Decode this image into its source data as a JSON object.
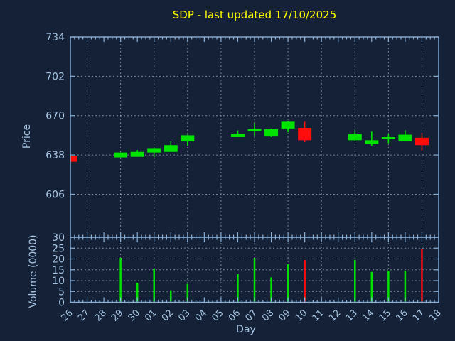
{
  "window": {
    "background_color": "#142136",
    "axis_line_color": "#8ab0d8",
    "text_color": "#a8c6e4",
    "grid_color": "#b4bcc8",
    "title_color": "#ffff00",
    "up_color": "#00e400",
    "down_color": "#ff0d0d"
  },
  "chart": {
    "title": "SDP - last updated 17/10/2025",
    "price_axis_label": "Price",
    "volume_axis_label": "Volume (0000)",
    "day_axis_label": "Day",
    "day_axis": {
      "gridline_days": [
        "27",
        "29",
        "01",
        "03",
        "05",
        "07",
        "09",
        "11",
        "13",
        "15",
        "17"
      ]
    }
  },
  "chart_data": [
    {
      "type": "candlestick",
      "title": "SDP - last updated 17/10/2025",
      "xlabel": "Day",
      "ylabel": "Price",
      "categories": [
        "26",
        "27",
        "28",
        "29",
        "30",
        "01",
        "02",
        "03",
        "04",
        "05",
        "06",
        "07",
        "08",
        "09",
        "10",
        "11",
        "12",
        "13",
        "14",
        "15",
        "16",
        "17",
        "18"
      ],
      "yticks": [
        606,
        638,
        670,
        702,
        734
      ],
      "ylim": [
        571,
        734
      ],
      "grid": true,
      "legend": "none",
      "candles": [
        {
          "day": "26",
          "open": 637.5,
          "high": 637.5,
          "low": 632.5,
          "close": 632.5,
          "direction": "down",
          "clipped_at_left_edge": true
        },
        {
          "day": "29",
          "open": 636,
          "high": 640,
          "low": 636,
          "close": 640,
          "direction": "up"
        },
        {
          "day": "30",
          "open": 636.5,
          "high": 642,
          "low": 636.5,
          "close": 640.5,
          "direction": "up"
        },
        {
          "day": "01",
          "open": 640,
          "high": 644,
          "low": 636,
          "close": 643,
          "direction": "up"
        },
        {
          "day": "02",
          "open": 640.5,
          "high": 649,
          "low": 640.5,
          "close": 646,
          "direction": "up"
        },
        {
          "day": "03",
          "open": 649,
          "high": 654.5,
          "low": 645.5,
          "close": 654,
          "direction": "up"
        },
        {
          "day": "06",
          "open": 652.5,
          "high": 658,
          "low": 652.5,
          "close": 655,
          "direction": "up"
        },
        {
          "day": "07",
          "open": 657.5,
          "high": 664,
          "low": 653,
          "close": 659,
          "direction": "up"
        },
        {
          "day": "08",
          "open": 653,
          "high": 659.5,
          "low": 652.5,
          "close": 659,
          "direction": "up"
        },
        {
          "day": "09",
          "open": 659.5,
          "high": 665.5,
          "low": 656.5,
          "close": 665,
          "direction": "up"
        },
        {
          "day": "10",
          "open": 660,
          "high": 665,
          "low": 648.5,
          "close": 650,
          "direction": "down"
        },
        {
          "day": "13",
          "open": 650,
          "high": 658,
          "low": 650,
          "close": 655,
          "direction": "up"
        },
        {
          "day": "14",
          "open": 647,
          "high": 657,
          "low": 645.5,
          "close": 650,
          "direction": "up"
        },
        {
          "day": "15",
          "open": 651,
          "high": 655,
          "low": 647.5,
          "close": 652.5,
          "direction": "up"
        },
        {
          "day": "16",
          "open": 649,
          "high": 658,
          "low": 649,
          "close": 654.5,
          "direction": "up"
        },
        {
          "day": "17",
          "open": 652,
          "high": 656,
          "low": 641.5,
          "close": 646,
          "direction": "down"
        }
      ]
    },
    {
      "type": "bar",
      "ylabel": "Volume (0000)",
      "xlabel": "Day",
      "categories": [
        "26",
        "27",
        "28",
        "29",
        "30",
        "01",
        "02",
        "03",
        "04",
        "05",
        "06",
        "07",
        "08",
        "09",
        "10",
        "11",
        "12",
        "13",
        "14",
        "15",
        "16",
        "17",
        "18"
      ],
      "yticks": [
        0,
        5,
        10,
        15,
        20,
        25,
        30
      ],
      "ylim": [
        0,
        30
      ],
      "grid": true,
      "bars": [
        {
          "day": "29",
          "value": 20.5,
          "direction": "up"
        },
        {
          "day": "30",
          "value": 9,
          "direction": "up"
        },
        {
          "day": "01",
          "value": 15.5,
          "direction": "up"
        },
        {
          "day": "02",
          "value": 5.5,
          "direction": "up"
        },
        {
          "day": "03",
          "value": 8.5,
          "direction": "up"
        },
        {
          "day": "06",
          "value": 13,
          "direction": "up"
        },
        {
          "day": "07",
          "value": 20.5,
          "direction": "up"
        },
        {
          "day": "08",
          "value": 11.5,
          "direction": "up"
        },
        {
          "day": "09",
          "value": 17.5,
          "direction": "up"
        },
        {
          "day": "10",
          "value": 19.5,
          "direction": "down"
        },
        {
          "day": "13",
          "value": 19.5,
          "direction": "up"
        },
        {
          "day": "14",
          "value": 14,
          "direction": "up"
        },
        {
          "day": "15",
          "value": 14.5,
          "direction": "up"
        },
        {
          "day": "16",
          "value": 14.5,
          "direction": "up"
        },
        {
          "day": "17",
          "value": 24.5,
          "direction": "down"
        }
      ]
    }
  ]
}
